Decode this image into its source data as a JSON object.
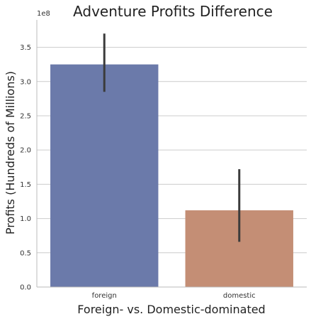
{
  "chart_data": {
    "type": "bar",
    "title": "Adventure Profits Difference",
    "xlabel": "Foreign- vs. Domestic-dominated",
    "ylabel": "Profits (Hundreds of Millions)",
    "y_offset_label": "1e8",
    "categories": [
      "foreign",
      "domestic"
    ],
    "values": [
      3.25,
      1.12
    ],
    "error_low": [
      2.85,
      0.66
    ],
    "error_high": [
      3.7,
      1.72
    ],
    "ylim": [
      0,
      3.9
    ],
    "yticks": [
      "0.0",
      "0.5",
      "1.0",
      "1.5",
      "2.0",
      "2.5",
      "3.0",
      "3.5"
    ],
    "grid": true,
    "colors": [
      "#6b7aaa",
      "#c48e75"
    ],
    "error_color": "#3b3b3b",
    "grid_color": "#cccccc"
  }
}
